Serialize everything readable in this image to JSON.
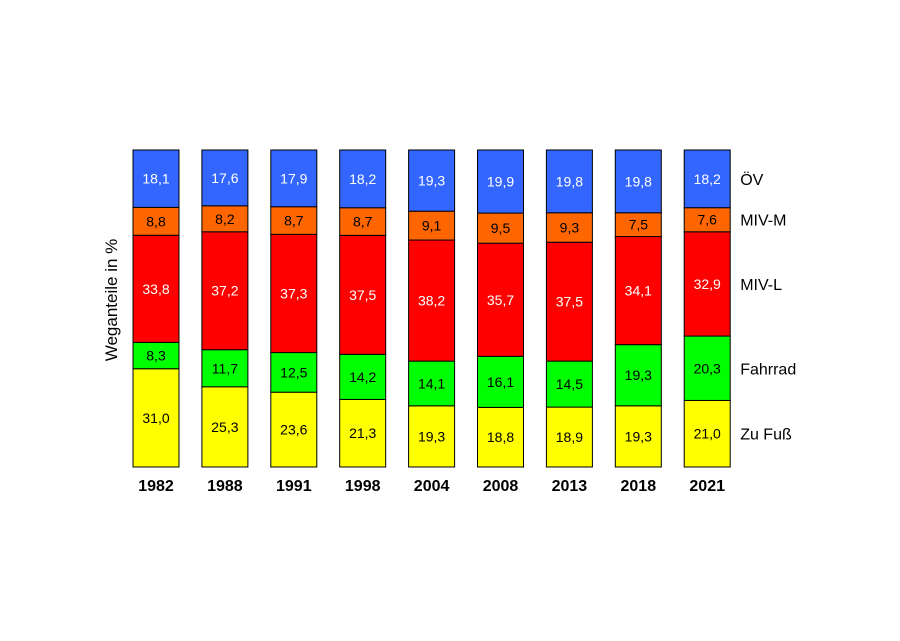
{
  "chart_data": {
    "type": "bar",
    "stacked": true,
    "normalized": true,
    "ylabel": "Weganteile in %",
    "categories": [
      "1982",
      "1988",
      "1991",
      "1998",
      "2004",
      "2008",
      "2013",
      "2018",
      "2021"
    ],
    "series": [
      {
        "name": "Zu Fuß",
        "color": "#ffff00",
        "label_color": "#000000",
        "values": [
          31.0,
          25.3,
          23.6,
          21.3,
          19.3,
          18.8,
          18.9,
          19.3,
          21.0
        ],
        "labels": [
          "31,0",
          "25,3",
          "23,6",
          "21,3",
          "19,3",
          "18,8",
          "18,9",
          "19,3",
          "21,0"
        ]
      },
      {
        "name": "Fahrrad",
        "color": "#00ff00",
        "label_color": "#000000",
        "values": [
          8.3,
          11.7,
          12.5,
          14.2,
          14.1,
          16.1,
          14.5,
          19.3,
          20.3
        ],
        "labels": [
          "8,3",
          "11,7",
          "12,5",
          "14,2",
          "14,1",
          "16,1",
          "14,5",
          "19,3",
          "20,3"
        ]
      },
      {
        "name": "MIV-L",
        "color": "#ff0000",
        "label_color": "#ffffff",
        "values": [
          33.8,
          37.2,
          37.3,
          37.5,
          38.2,
          35.7,
          37.5,
          34.1,
          32.9
        ],
        "labels": [
          "33,8",
          "37,2",
          "37,3",
          "37,5",
          "38,2",
          "35,7",
          "37,5",
          "34,1",
          "32,9"
        ]
      },
      {
        "name": "MIV-M",
        "color": "#ff6600",
        "label_color": "#000000",
        "values": [
          8.8,
          8.2,
          8.7,
          8.7,
          9.1,
          9.5,
          9.3,
          7.5,
          7.6
        ],
        "labels": [
          "8,8",
          "8,2",
          "8,7",
          "8,7",
          "9,1",
          "9,5",
          "9,3",
          "7,5",
          "7,6"
        ]
      },
      {
        "name": "ÖV",
        "color": "#3366ff",
        "label_color": "#ffffff",
        "values": [
          18.1,
          17.6,
          17.9,
          18.2,
          19.3,
          19.9,
          19.8,
          19.8,
          18.2
        ],
        "labels": [
          "18,1",
          "17,6",
          "17,9",
          "18,2",
          "19,3",
          "19,9",
          "19,8",
          "19,8",
          "18,2"
        ]
      }
    ],
    "legend": "right, aligned with 2021 segments",
    "grid": false
  }
}
